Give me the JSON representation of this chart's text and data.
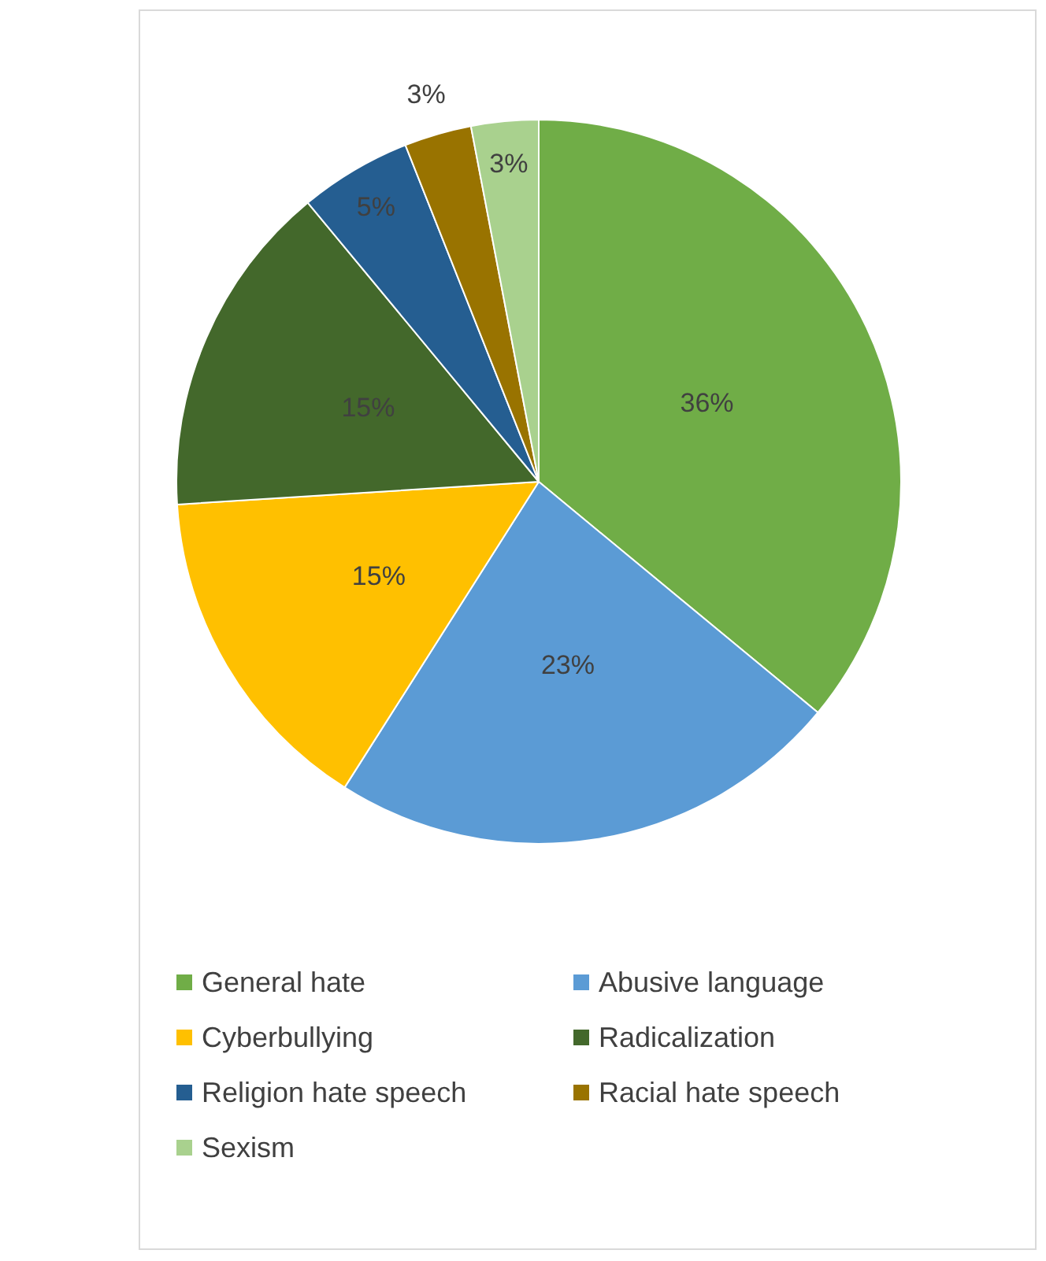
{
  "chart_data": {
    "type": "pie",
    "categories": [
      "General hate",
      "Abusive language",
      "Cyberbullying",
      "Radicalization",
      "Religion hate speech",
      "Racial hate speech",
      "Sexism"
    ],
    "values": [
      36,
      23,
      15,
      15,
      5,
      3,
      3
    ],
    "value_labels": [
      "36%",
      "23%",
      "15%",
      "15%",
      "5%",
      "3%",
      "3%"
    ],
    "colors": [
      "#70ad47",
      "#5b9bd5",
      "#ffc000",
      "#43682b",
      "#255e91",
      "#997300",
      "#a9d18e"
    ],
    "legend": "bottom"
  }
}
